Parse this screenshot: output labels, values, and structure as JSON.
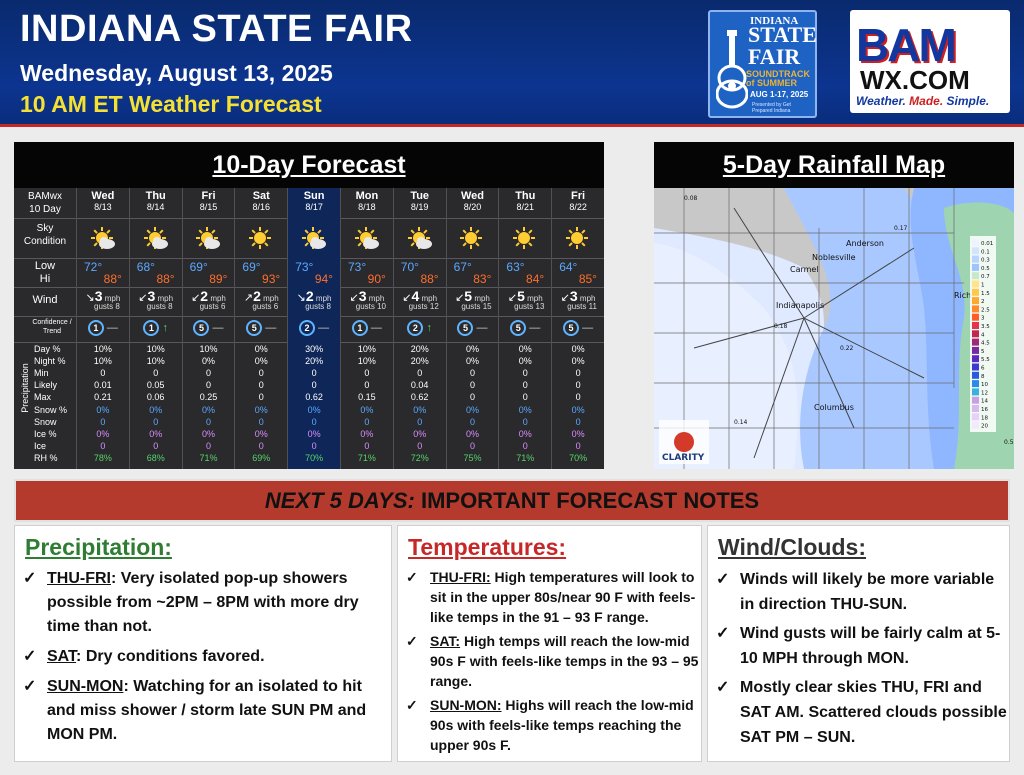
{
  "header": {
    "title": "INDIANA STATE FAIR",
    "date": "Wednesday, August 13, 2025",
    "forecast_time": "10 AM ET Weather Forecast"
  },
  "fair_logo": {
    "line1": "INDIANA",
    "line2": "STATE",
    "line3": "FAIR",
    "tagline": "SOUNDTRACK of SUMMER",
    "dates": "AUG 1-17, 2025",
    "presented": "Presented by Get Prepared Indiana"
  },
  "bam_logo": {
    "top": "BAM",
    "mid": "WX.COM",
    "tag_a": "Weather.",
    "tag_b": "Made.",
    "tag_c": "Simple."
  },
  "forecast": {
    "title": "10-Day Forecast",
    "corner": "BAMwx\n10 Day",
    "row_labels": {
      "sky": "Sky\nCondition",
      "temp": "Low\nHi",
      "wind": "Wind",
      "confidence": "Confidence / Trend",
      "precip_side": "Precipitation",
      "precip": [
        "Day %",
        "Night %",
        "Min",
        "Likely",
        "Max",
        "Snow %",
        "Snow",
        "Ice %",
        "Ice",
        "RH %"
      ]
    },
    "wind_unit": "mph",
    "days": [
      {
        "day": "Wed",
        "date": "8/13",
        "sky": "partly-cloudy",
        "low": "72°",
        "hi": "88°",
        "wind_dir": "↘",
        "wind": "3",
        "gusts": "gusts 8",
        "conf": "1",
        "trend": "—",
        "precip": [
          "10%",
          "10%",
          "0",
          "0.01",
          "0.21",
          "0%",
          "0",
          "0%",
          "0",
          "78%"
        ]
      },
      {
        "day": "Thu",
        "date": "8/14",
        "sky": "partly-cloudy",
        "low": "68°",
        "hi": "88°",
        "wind_dir": "↙",
        "wind": "3",
        "gusts": "gusts 8",
        "conf": "1",
        "trend": "↑",
        "precip": [
          "10%",
          "10%",
          "0",
          "0.05",
          "0.06",
          "0%",
          "0",
          "0%",
          "0",
          "68%"
        ]
      },
      {
        "day": "Fri",
        "date": "8/15",
        "sky": "partly-cloudy",
        "low": "69°",
        "hi": "89°",
        "wind_dir": "↙",
        "wind": "2",
        "gusts": "gusts 6",
        "conf": "5",
        "trend": "—",
        "precip": [
          "10%",
          "0%",
          "0",
          "0",
          "0.25",
          "0%",
          "0",
          "0%",
          "0",
          "71%"
        ]
      },
      {
        "day": "Sat",
        "date": "8/16",
        "sky": "sunny",
        "low": "69°",
        "hi": "93°",
        "wind_dir": "↗",
        "wind": "2",
        "gusts": "gusts 6",
        "conf": "5",
        "trend": "—",
        "precip": [
          "0%",
          "0%",
          "0",
          "0",
          "0",
          "0%",
          "0",
          "0%",
          "0",
          "69%"
        ]
      },
      {
        "day": "Sun",
        "date": "8/17",
        "sky": "partly-cloudy",
        "low": "73°",
        "hi": "94°",
        "wind_dir": "↘",
        "wind": "2",
        "gusts": "gusts 8",
        "conf": "2",
        "trend": "—",
        "precip": [
          "30%",
          "20%",
          "0",
          "0",
          "0.62",
          "0%",
          "0",
          "0%",
          "0",
          "70%"
        ]
      },
      {
        "day": "Mon",
        "date": "8/18",
        "sky": "partly-cloudy",
        "low": "73°",
        "hi": "90°",
        "wind_dir": "↙",
        "wind": "3",
        "gusts": "gusts 10",
        "conf": "1",
        "trend": "—",
        "precip": [
          "10%",
          "10%",
          "0",
          "0",
          "0.15",
          "0%",
          "0",
          "0%",
          "0",
          "71%"
        ]
      },
      {
        "day": "Tue",
        "date": "8/19",
        "sky": "partly-cloudy",
        "low": "70°",
        "hi": "88°",
        "wind_dir": "↙",
        "wind": "4",
        "gusts": "gusts 12",
        "conf": "2",
        "trend": "↑",
        "precip": [
          "20%",
          "20%",
          "0",
          "0.04",
          "0.62",
          "0%",
          "0",
          "0%",
          "0",
          "72%"
        ]
      },
      {
        "day": "Wed",
        "date": "8/20",
        "sky": "sunny",
        "low": "67°",
        "hi": "83°",
        "wind_dir": "↙",
        "wind": "5",
        "gusts": "gusts 15",
        "conf": "5",
        "trend": "—",
        "precip": [
          "0%",
          "0%",
          "0",
          "0",
          "0",
          "0%",
          "0",
          "0%",
          "0",
          "75%"
        ]
      },
      {
        "day": "Thu",
        "date": "8/21",
        "sky": "sunny",
        "low": "63°",
        "hi": "84°",
        "wind_dir": "↙",
        "wind": "5",
        "gusts": "gusts 13",
        "conf": "5",
        "trend": "—",
        "precip": [
          "0%",
          "0%",
          "0",
          "0",
          "0",
          "0%",
          "0",
          "0%",
          "0",
          "71%"
        ]
      },
      {
        "day": "Fri",
        "date": "8/22",
        "sky": "sunny",
        "low": "64°",
        "hi": "85°",
        "wind_dir": "↙",
        "wind": "3",
        "gusts": "gusts 11",
        "conf": "5",
        "trend": "—",
        "precip": [
          "0%",
          "0%",
          "0",
          "0",
          "0",
          "0%",
          "0",
          "0%",
          "0",
          "70%"
        ]
      }
    ],
    "colors": {
      "low": "#5aa9ff",
      "hi": "#ff6e2c",
      "snow": "#5aa9ff",
      "ice": "#d98cff",
      "rh": "#56d36a",
      "trend_up": "#56d36a",
      "conf_ring": "#5fb4ff"
    }
  },
  "map": {
    "title": "5-Day Rainfall Map",
    "places": [
      "Anderson",
      "Noblesville",
      "Carmel",
      "Indianapolis",
      "Columbus",
      "Rich"
    ],
    "values": [
      "0.08",
      "0.17",
      "0.18",
      "0.22",
      "0.14",
      "0.5"
    ],
    "legend": [
      "0.01",
      "0.1",
      "0.3",
      "0.5",
      "0.7",
      "1",
      "1.5",
      "2",
      "2.5",
      "3",
      "3.5",
      "4",
      "4.5",
      "5",
      "5.5",
      "6",
      "8",
      "10",
      "12",
      "14",
      "16",
      "18",
      "20"
    ],
    "legend_colors": [
      "#eef4ff",
      "#d4e4ff",
      "#b8d4ff",
      "#9ec4ff",
      "#c8e8c8",
      "#ffe48a",
      "#ffc84a",
      "#ffa830",
      "#ff8a2a",
      "#ff5a2a",
      "#e8344a",
      "#c02850",
      "#a02878",
      "#7a2aa0",
      "#5a2ac0",
      "#3a3ad0",
      "#2a5ae0",
      "#2a8ae8",
      "#3ab0e0",
      "#c8a0e0",
      "#d8b8f0",
      "#e8d0f8",
      "#f4e8ff"
    ],
    "logo": "CLARITY"
  },
  "notes_banner": {
    "italic": "NEXT 5 DAYS:",
    "rest": " IMPORTANT FORECAST NOTES"
  },
  "notes": {
    "precip": {
      "title": "Precipitation:",
      "items": [
        {
          "lead": "THU-FRI",
          "text": ": Very isolated pop-up showers possible from ~2PM – 8PM with more dry time than not."
        },
        {
          "lead": "SAT",
          "text": ": Dry conditions favored."
        },
        {
          "lead": "SUN-MON",
          "text": ": Watching for an isolated to hit and miss shower / storm late SUN PM and MON PM."
        }
      ]
    },
    "temps": {
      "title": "Temperatures:",
      "items": [
        {
          "lead": "THU-FRI:",
          "text": " High temperatures will look to sit in the upper 80s/near 90 F with feels-like temps in the 91 – 93 F range."
        },
        {
          "lead": "SAT:",
          "text": " High temps will reach the low-mid 90s F with feels-like temps in the  93 – 95 range."
        },
        {
          "lead": "SUN-MON:",
          "text": " Highs will reach the low-mid 90s with feels-like temps reaching the upper 90s F."
        }
      ]
    },
    "wind": {
      "title": "Wind/Clouds:",
      "items": [
        {
          "lead": "",
          "text": "Winds will likely be more variable in direction THU-SUN."
        },
        {
          "lead": "",
          "text": "Wind gusts will be fairly calm at 5-10 MPH through MON."
        },
        {
          "lead": "",
          "text": "Mostly clear skies THU, FRI and SAT AM. Scattered clouds possible SAT PM – SUN."
        }
      ]
    },
    "colors": {
      "precip": "#2e7d32",
      "temps": "#c62828",
      "wind": "#333333"
    }
  }
}
